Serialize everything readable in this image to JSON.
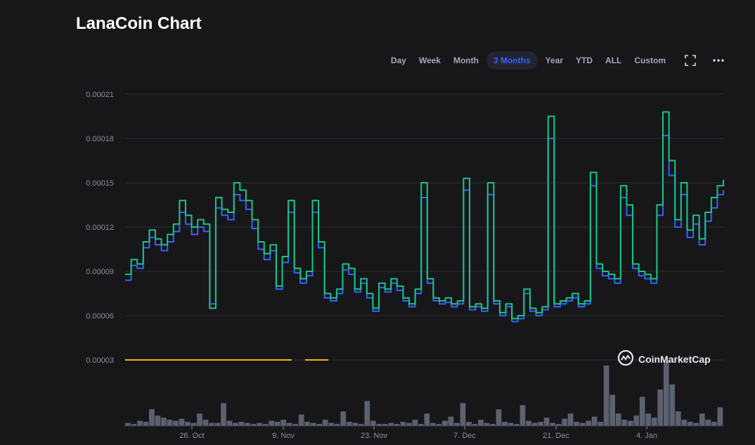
{
  "header": {
    "title": "LanaCoin Chart"
  },
  "range_buttons": [
    "Day",
    "Week",
    "Month",
    "3 Months",
    "Year",
    "YTD",
    "ALL",
    "Custom"
  ],
  "active_range": "3 Months",
  "icons": {
    "fullscreen": "fullscreen-icon",
    "more": "more-dots-icon",
    "brand": "coinmarketcap-logo-icon"
  },
  "watermark": "CoinMarketCap",
  "colors": {
    "background": "#17171a",
    "price_usd": "#16c784",
    "price_btc": "#3861fb",
    "active_tab": "#3861fb",
    "baseline": "#f0b90b",
    "volume": "#5c6170"
  },
  "chart_data": {
    "type": "line",
    "y_ticks": [
      "0.00021",
      "0.00018",
      "0.00015",
      "0.00012",
      "0.00009",
      "0.00006",
      "0.00003"
    ],
    "ylim": [
      3e-05,
      0.00021
    ],
    "x_ticks": [
      "26. Oct",
      "9. Nov",
      "23. Nov",
      "7. Dec",
      "21. Dec",
      "4. Jan"
    ],
    "series": [
      {
        "values": [
          8.8e-05,
          9.8e-05,
          9.5e-05,
          0.00011,
          0.000118,
          0.000112,
          0.000108,
          0.000115,
          0.000122,
          0.000138,
          0.000128,
          0.00012,
          0.000125,
          0.000122,
          6.5e-05,
          0.00014,
          0.000132,
          0.00013,
          0.00015,
          0.000145,
          0.000138,
          0.000125,
          0.00011,
          0.000102,
          0.000108,
          8e-05,
          0.0001,
          0.000138,
          9.2e-05,
          8.5e-05,
          9e-05,
          0.000138,
          0.00011,
          7.5e-05,
          7.2e-05,
          7.8e-05,
          9.5e-05,
          9.2e-05,
          7.8e-05,
          8.5e-05,
          7.5e-05,
          6.5e-05,
          8.2e-05,
          7.8e-05,
          8.5e-05,
          8e-05,
          7.2e-05,
          6.8e-05,
          7.8e-05,
          0.00015,
          8.5e-05,
          7.2e-05,
          7e-05,
          7.2e-05,
          6.8e-05,
          7e-05,
          0.000153,
          6.6e-05,
          6.8e-05,
          6.5e-05,
          0.00015,
          7e-05,
          6.2e-05,
          6.8e-05,
          5.8e-05,
          6e-05,
          7.8e-05,
          6.5e-05,
          6.2e-05,
          6.6e-05,
          0.000195,
          6.8e-05,
          7e-05,
          7.2e-05,
          7.5e-05,
          6.8e-05,
          7e-05,
          0.000157,
          9.5e-05,
          9e-05,
          8.8e-05,
          8.5e-05,
          0.000148,
          0.000135,
          9.5e-05,
          9e-05,
          8.8e-05,
          8.5e-05,
          0.000135,
          0.000198,
          0.000165,
          0.000125,
          0.00015,
          0.000118,
          0.000128,
          0.000112,
          0.00013,
          0.00014,
          0.000148,
          0.000152
        ]
      },
      {
        "values": [
          8.4e-05,
          9.4e-05,
          9.2e-05,
          0.000106,
          0.000113,
          0.000108,
          0.000104,
          0.00011,
          0.000117,
          0.00013,
          0.000122,
          0.000115,
          0.00012,
          0.000117,
          6.8e-05,
          0.000133,
          0.000128,
          0.000125,
          0.000142,
          0.000138,
          0.000132,
          0.000119,
          0.000105,
          9.8e-05,
          0.000104,
          7.8e-05,
          9.6e-05,
          0.00013,
          8.9e-05,
          8.2e-05,
          8.7e-05,
          0.00013,
          0.000106,
          7.2e-05,
          7e-05,
          7.5e-05,
          9.1e-05,
          8.8e-05,
          7.6e-05,
          8.2e-05,
          7.2e-05,
          6.3e-05,
          7.9e-05,
          7.6e-05,
          8.2e-05,
          7.7e-05,
          7e-05,
          6.6e-05,
          7.5e-05,
          0.00014,
          8.2e-05,
          7e-05,
          6.8e-05,
          6.9e-05,
          6.6e-05,
          6.8e-05,
          0.000145,
          6.4e-05,
          6.6e-05,
          6.3e-05,
          0.000142,
          6.8e-05,
          6e-05,
          6.6e-05,
          5.6e-05,
          5.8e-05,
          7.5e-05,
          6.3e-05,
          6e-05,
          6.4e-05,
          0.00018,
          6.6e-05,
          6.8e-05,
          7e-05,
          7.2e-05,
          6.6e-05,
          6.8e-05,
          0.000148,
          9.2e-05,
          8.7e-05,
          8.5e-05,
          8.2e-05,
          0.00014,
          0.000128,
          9.2e-05,
          8.7e-05,
          8.5e-05,
          8.2e-05,
          0.000128,
          0.000182,
          0.000155,
          0.00012,
          0.000142,
          0.000113,
          0.000122,
          0.000108,
          0.000124,
          0.000133,
          0.000142,
          0.000145
        ]
      }
    ],
    "volume": [
      3,
      2,
      5,
      4,
      16,
      10,
      8,
      6,
      5,
      7,
      4,
      3,
      12,
      6,
      3,
      3,
      22,
      5,
      3,
      4,
      3,
      2,
      3,
      2,
      5,
      4,
      6,
      3,
      2,
      11,
      4,
      3,
      2,
      6,
      3,
      2,
      14,
      4,
      3,
      2,
      24,
      5,
      2,
      2,
      3,
      2,
      4,
      3,
      6,
      2,
      12,
      3,
      2,
      5,
      9,
      3,
      22,
      4,
      2,
      6,
      3,
      2,
      16,
      4,
      3,
      2,
      20,
      5,
      3,
      4,
      8,
      3,
      2,
      7,
      12,
      4,
      3,
      5,
      9,
      4,
      58,
      30,
      12,
      6,
      5,
      10,
      28,
      12,
      8,
      35,
      62,
      40,
      14,
      6,
      4,
      3,
      12,
      6,
      4,
      18
    ]
  }
}
